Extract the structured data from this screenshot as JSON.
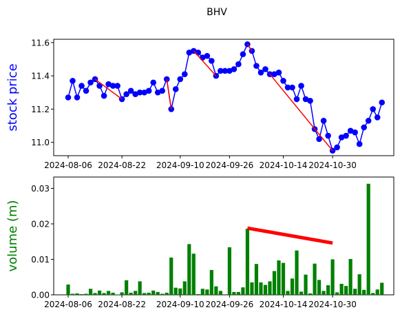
{
  "figure": {
    "title": "BHV"
  },
  "chart_data": [
    {
      "type": "line",
      "title": "BHV",
      "xlabel": "",
      "ylabel": "stock price",
      "ylabel_color": "#0000ff",
      "line_color": "#0000ff",
      "marker_color": "#0000ff",
      "trend_color": "#ff0000",
      "ylim": [
        10.92,
        11.62
      ],
      "yticks": [
        "11.0",
        "11.2",
        "11.4",
        "11.6"
      ],
      "ytick_values": [
        11.0,
        11.2,
        11.4,
        11.6
      ],
      "xticks": [
        "2024-08-06",
        "2024-08-22",
        "2024-09-10",
        "2024-09-26",
        "2024-10-14",
        "2024-10-30"
      ],
      "grid": false,
      "series": [
        {
          "values": [
            11.27,
            11.37,
            11.27,
            11.34,
            11.31,
            11.36,
            11.38,
            11.34,
            11.28,
            11.35,
            11.34,
            11.34,
            11.26,
            11.29,
            11.31,
            11.29,
            11.3,
            11.3,
            11.31,
            11.36,
            11.3,
            11.31,
            11.38,
            11.2,
            11.32,
            11.38,
            11.41,
            11.54,
            11.55,
            11.54,
            11.51,
            11.52,
            11.49,
            11.4,
            11.43,
            11.43,
            11.43,
            11.44,
            11.47,
            11.53,
            11.59,
            11.55,
            11.46,
            11.42,
            11.44,
            11.41,
            11.41,
            11.42,
            11.37,
            11.33,
            11.33,
            11.26,
            11.34,
            11.26,
            11.25,
            11.08,
            11.02,
            11.13,
            11.04,
            10.95,
            10.97,
            11.03,
            11.04,
            11.07,
            11.06,
            10.99,
            11.09,
            11.13,
            11.2,
            11.15,
            11.24
          ]
        }
      ],
      "trend_lines": [
        {
          "from_index": 6,
          "to_index": 12,
          "from_value": 11.38,
          "to_value": 11.26
        },
        {
          "from_index": 22,
          "to_index": 23,
          "from_value": 11.38,
          "to_value": 11.2
        },
        {
          "from_index": 28,
          "to_index": 33,
          "from_value": 11.55,
          "to_value": 11.4
        },
        {
          "from_index": 40,
          "to_index": 41,
          "from_value": 11.59,
          "to_value": 11.55
        },
        {
          "from_index": 45,
          "to_index": 59,
          "from_value": 11.41,
          "to_value": 10.95
        }
      ]
    },
    {
      "type": "bar",
      "xlabel": "",
      "ylabel": "volume (m)",
      "ylabel_color": "#008000",
      "bar_color": "#008000",
      "trend_color": "#ff0000",
      "ylim": [
        0,
        0.0332
      ],
      "yticks": [
        "0.00",
        "0.01",
        "0.02",
        "0.03"
      ],
      "ytick_values": [
        0.0,
        0.01,
        0.02,
        0.03
      ],
      "xticks": [
        "2024-08-06",
        "2024-08-22",
        "2024-09-10",
        "2024-09-26",
        "2024-10-14",
        "2024-10-30"
      ],
      "grid": false,
      "values": [
        0.0029,
        0.0003,
        0.0004,
        0.0002,
        0.0003,
        0.0017,
        0.0005,
        0.0012,
        0.0005,
        0.0011,
        0.0006,
        0.0001,
        0.0007,
        0.0041,
        0.0006,
        0.0011,
        0.0038,
        0.0005,
        0.0006,
        0.0012,
        0.0008,
        0.0003,
        0.0006,
        0.0105,
        0.002,
        0.0018,
        0.0038,
        0.0143,
        0.0116,
        0.0002,
        0.0017,
        0.0015,
        0.007,
        0.0024,
        0.0011,
        0.0,
        0.0134,
        0.0008,
        0.0008,
        0.0021,
        0.0186,
        0.0035,
        0.0087,
        0.0035,
        0.0028,
        0.0038,
        0.0067,
        0.0097,
        0.009,
        0.0011,
        0.0046,
        0.0125,
        0.0009,
        0.0057,
        0.0004,
        0.0088,
        0.0042,
        0.0011,
        0.0027,
        0.01,
        0.0007,
        0.0031,
        0.0025,
        0.0101,
        0.0017,
        0.0058,
        0.0014,
        0.0313,
        0.0005,
        0.0015,
        0.0034
      ],
      "trend_line": {
        "from_index": 40,
        "to_index": 59,
        "from_value": 0.0188,
        "to_value": 0.0146
      }
    }
  ]
}
